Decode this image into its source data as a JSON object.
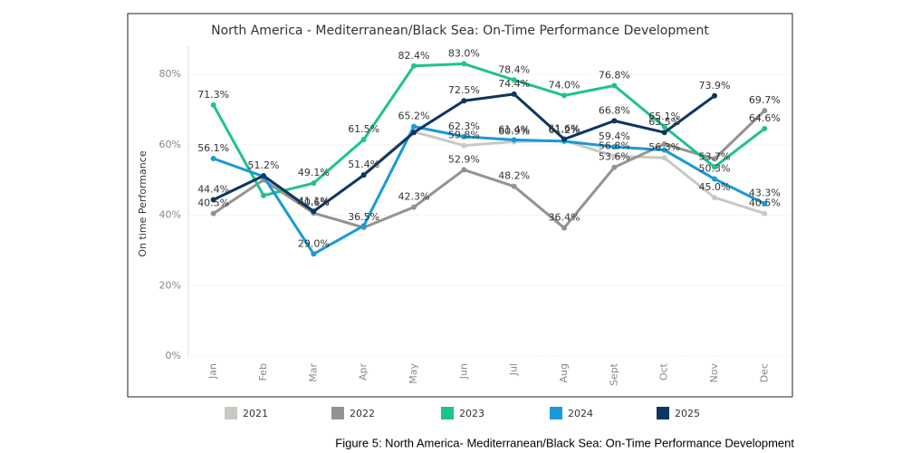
{
  "chart_data": {
    "type": "line",
    "title": "North America - Mediterranean/Black Sea: On-Time Performance Development",
    "y_label": "On time Performance",
    "caption": "Figure 5: North America- Mediterranean/Black Sea: On-Time Performance Development",
    "categories": [
      "Jan",
      "Feb",
      "Mar",
      "Apr",
      "May",
      "Jun",
      "Jul",
      "Aug",
      "Sept",
      "Oct",
      "Nov",
      "Dec"
    ],
    "ylim": [
      0,
      88
    ],
    "yticks": [
      {
        "value": 0,
        "label": "0%"
      },
      {
        "value": 20,
        "label": "20%"
      },
      {
        "value": 40,
        "label": "40%"
      },
      {
        "value": 60,
        "label": "60%"
      },
      {
        "value": 80,
        "label": "80%"
      }
    ],
    "grid": true,
    "series": [
      {
        "name": "2021",
        "color": "#c9c9c4",
        "values": [
          null,
          null,
          null,
          51.7,
          63.7,
          59.8,
          60.9,
          61.2,
          56.8,
          56.3,
          45.0,
          40.5
        ],
        "value_labels": [
          null,
          null,
          null,
          null,
          null,
          "59.8%",
          "60.9%",
          "61.2%",
          "56.8%",
          "56.3%",
          "45.0%",
          "40.5%"
        ]
      },
      {
        "name": "2022",
        "color": "#96938e",
        "values": [
          40.5,
          50.0,
          40.6,
          36.5,
          42.3,
          52.9,
          48.2,
          36.4,
          53.6,
          60.2,
          56.0,
          69.7
        ],
        "value_labels": [
          "40.5%",
          null,
          "40.6%",
          "36.5%",
          "42.3%",
          "52.9%",
          "48.2%",
          "36.4%",
          "53.6%",
          null,
          null,
          "69.7%"
        ]
      },
      {
        "name": "2023",
        "color": "#1fc28f",
        "values": [
          71.3,
          45.6,
          49.1,
          61.5,
          82.4,
          83.0,
          78.4,
          74.0,
          76.8,
          65.1,
          53.7,
          64.6
        ],
        "value_labels": [
          "71.3%",
          null,
          "49.1%",
          "61.5%",
          "82.4%",
          "83.0%",
          "78.4%",
          "74.0%",
          "76.8%",
          "65.1%",
          "53.7%",
          "64.6%"
        ]
      },
      {
        "name": "2024",
        "color": "#1a9ad6",
        "values": [
          56.1,
          51.0,
          29.0,
          37.0,
          65.2,
          62.3,
          61.4,
          61.0,
          59.4,
          58.5,
          50.3,
          43.3
        ],
        "value_labels": [
          "56.1%",
          null,
          "29.0%",
          null,
          "65.2%",
          "62.3%",
          "61.4%",
          null,
          "59.4%",
          null,
          "50.3%",
          "43.3%"
        ]
      },
      {
        "name": "2025",
        "color": "#0d3560",
        "values": [
          44.4,
          51.2,
          41.1,
          51.4,
          63.5,
          72.5,
          74.4,
          61.6,
          66.8,
          63.5,
          73.9,
          null
        ],
        "value_labels": [
          "44.4%",
          "51.2%",
          "41.1%",
          "51.4%",
          null,
          "72.5%",
          "74.4%",
          "61.6%",
          "66.8%",
          "63.5%",
          "73.9%",
          null
        ]
      }
    ]
  }
}
